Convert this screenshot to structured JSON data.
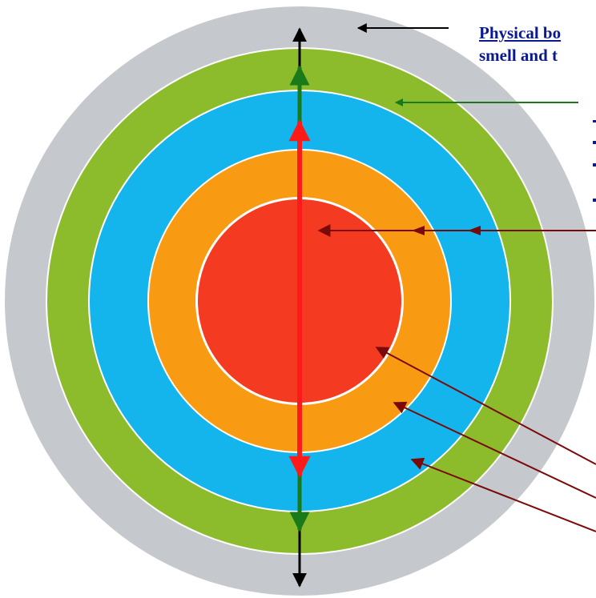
{
  "labels": {
    "top_line1": "Physical bo",
    "top_line2": "smell and t"
  },
  "colors": {
    "outer_ring": "#c5c8cd",
    "green_ring": "#8cbc2c",
    "blue_ring": "#14b5ec",
    "orange_ring": "#f89b13",
    "red_core": "#f53a22",
    "separator": "#ffffff",
    "arrow_black": "#000000",
    "arrow_green": "#1a7a1a",
    "arrow_red": "#ff1a1a",
    "arrow_maroon": "#7a0a0a",
    "label_text": "#0a1a8c"
  }
}
